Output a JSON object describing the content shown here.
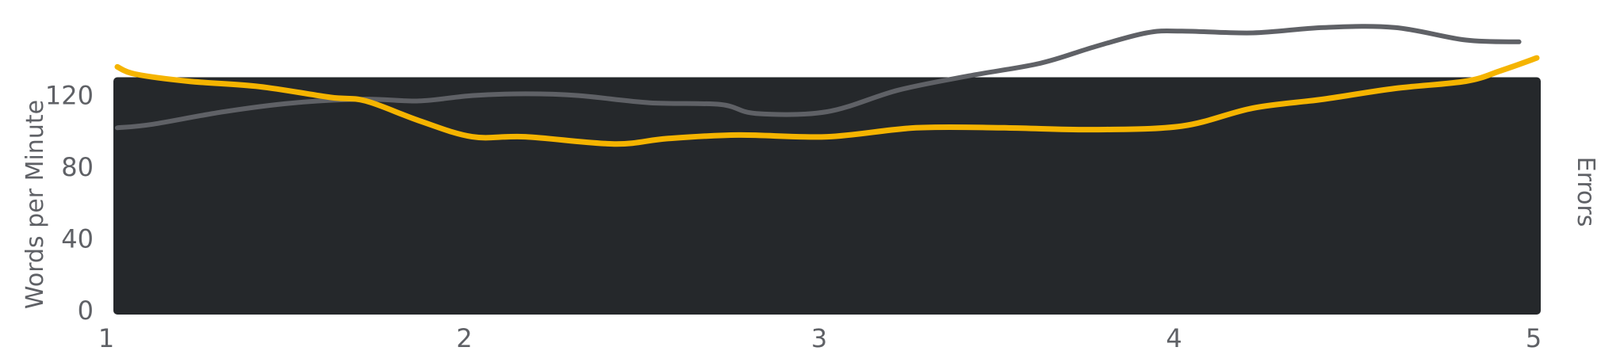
{
  "chart_data": {
    "type": "line",
    "title": "",
    "xlabel": "",
    "ylabel": "Words per Minute",
    "y2label": "Errors",
    "x_ticks": [
      "1",
      "2",
      "3",
      "4",
      "5"
    ],
    "y_ticks": [
      "0",
      "40",
      "80",
      "120"
    ],
    "xlim": [
      1,
      5
    ],
    "ylim": [
      0,
      130
    ],
    "grid": false,
    "colors": {
      "background_fill": "#25282b",
      "wpm_line": "#f5b400",
      "errors_line": "#5f6166",
      "text": "#5f6166"
    },
    "series": [
      {
        "name": "",
        "axis": "left",
        "style": "filled-area",
        "x": [
          1.0,
          1.2,
          1.4,
          1.6,
          1.8,
          2.0,
          2.2,
          2.4,
          2.6,
          2.8,
          3.0,
          3.2,
          3.4,
          3.6,
          3.8,
          4.0,
          4.2,
          4.4,
          4.6,
          4.8,
          5.0
        ],
        "values": [
          128,
          128,
          128,
          128,
          128,
          128,
          128,
          128,
          128,
          128,
          128,
          128,
          128,
          128,
          128,
          128,
          128,
          128,
          128,
          128,
          128
        ]
      },
      {
        "name": "",
        "axis": "left",
        "style": "line",
        "x": [
          1.0,
          1.05,
          1.2,
          1.4,
          1.6,
          1.7,
          1.85,
          2.0,
          2.15,
          2.4,
          2.55,
          2.75,
          3.0,
          3.25,
          3.5,
          3.75,
          4.0,
          4.2,
          4.4,
          4.6,
          4.8,
          4.9,
          5.0
        ],
        "values": [
          136,
          132,
          128,
          125,
          119,
          117,
          106,
          97,
          97,
          93,
          96,
          98,
          97,
          102,
          102,
          101,
          103,
          113,
          118,
          124,
          128,
          134,
          141
        ]
      },
      {
        "name": "",
        "axis": "right",
        "style": "line",
        "x": [
          1.0,
          1.1,
          1.3,
          1.5,
          1.7,
          1.85,
          2.0,
          2.15,
          2.3,
          2.5,
          2.7,
          2.8,
          3.0,
          3.2,
          3.4,
          3.6,
          3.75,
          3.9,
          4.0,
          4.2,
          4.4,
          4.6,
          4.8,
          4.95
        ],
        "values": [
          102,
          104,
          111,
          116,
          118,
          117,
          120,
          121,
          120,
          116,
          115,
          110,
          111,
          123,
          131,
          138,
          147,
          155,
          156,
          155,
          158,
          158,
          151,
          150
        ]
      }
    ]
  }
}
